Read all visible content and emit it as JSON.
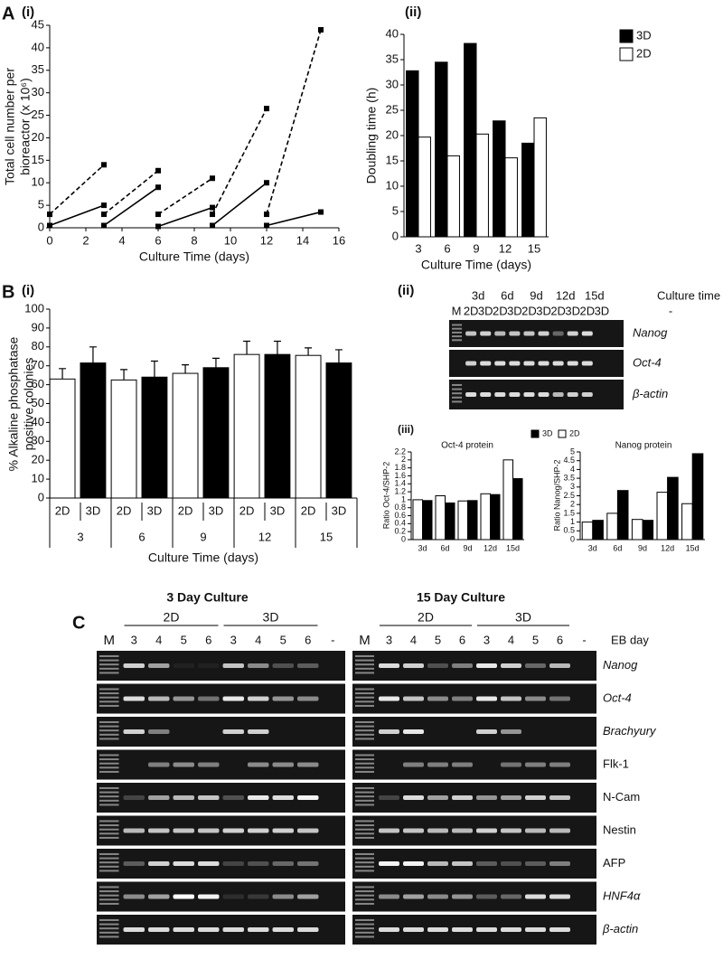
{
  "chart_data": [
    {
      "type": "line",
      "panel": "A",
      "title": "(i)",
      "xlabel": "Culture Time (days)",
      "ylabel": [
        "Total cell number per",
        "bioreactor (x 10⁶)"
      ],
      "xlim": [
        0,
        16
      ],
      "xticks": [
        0,
        2,
        4,
        6,
        8,
        10,
        12,
        14,
        16
      ],
      "ylim": [
        0,
        45
      ],
      "yticks": [
        0,
        5,
        10,
        15,
        20,
        25,
        30,
        35,
        40,
        45
      ],
      "series": [
        {
          "color": "#000000",
          "dashed": true,
          "x": [
            0,
            3
          ],
          "values": [
            3,
            14
          ]
        },
        {
          "color": "#000000",
          "dashed": true,
          "x": [
            3,
            6
          ],
          "values": [
            3,
            12.7
          ]
        },
        {
          "color": "#000000",
          "dashed": true,
          "x": [
            6,
            9
          ],
          "values": [
            3,
            11
          ]
        },
        {
          "color": "#000000",
          "dashed": true,
          "x": [
            9,
            12
          ],
          "values": [
            3,
            26.5
          ]
        },
        {
          "color": "#000000",
          "dashed": true,
          "x": [
            12,
            15
          ],
          "values": [
            3,
            44
          ]
        },
        {
          "color": "#000000",
          "dashed": false,
          "x": [
            0,
            3
          ],
          "values": [
            0.5,
            5
          ]
        },
        {
          "color": "#000000",
          "dashed": false,
          "x": [
            3,
            6
          ],
          "values": [
            0.5,
            9
          ]
        },
        {
          "color": "#000000",
          "dashed": false,
          "x": [
            6,
            9
          ],
          "values": [
            0.3,
            4.5
          ]
        },
        {
          "color": "#000000",
          "dashed": false,
          "x": [
            9,
            12
          ],
          "values": [
            0.5,
            10
          ]
        },
        {
          "color": "#000000",
          "dashed": false,
          "x": [
            12,
            15
          ],
          "values": [
            0.5,
            3.5
          ]
        }
      ]
    },
    {
      "type": "bar",
      "title": "(ii)",
      "xlabel": "Culture Time (days)",
      "ylabel": [
        "Doubling time (h)"
      ],
      "categories": [
        "3",
        "6",
        "9",
        "12",
        "15"
      ],
      "ylim": [
        0,
        40
      ],
      "yticks": [
        0,
        5,
        10,
        15,
        20,
        25,
        30,
        35,
        40
      ],
      "legend": "top-right",
      "series": [
        {
          "name": "3D",
          "color": "#000000",
          "values": [
            32.8,
            34.5,
            38.2,
            22.9,
            18.5
          ]
        },
        {
          "name": "2D",
          "color": "#ffffff",
          "values": [
            19.7,
            16,
            20.3,
            15.6,
            23.5
          ]
        }
      ]
    },
    {
      "type": "bar",
      "panel": "B",
      "title": "(i)",
      "xlabel": "Culture Time (days)",
      "ylabel": [
        "% Alkaline phosphatase",
        "positive colonies"
      ],
      "categories": [
        "3",
        "6",
        "9",
        "12",
        "15"
      ],
      "ylim": [
        0,
        100
      ],
      "yticks": [
        0,
        10,
        20,
        30,
        40,
        50,
        60,
        70,
        80,
        90,
        100
      ],
      "series_labels": true,
      "series": [
        {
          "name": "2D",
          "color": "#ffffff",
          "values": [
            63,
            62.5,
            66,
            76,
            75.5
          ],
          "errors": [
            5.5,
            5.5,
            4.5,
            7,
            4
          ]
        },
        {
          "name": "3D",
          "color": "#000000",
          "values": [
            71.5,
            64,
            69,
            76,
            71.5
          ],
          "errors": [
            8.5,
            8.5,
            5,
            7,
            7
          ]
        }
      ]
    },
    {
      "type": "bar",
      "panel": "(iii)",
      "title": "Oct-4 protein",
      "ylabel": [
        "Ratio Oct-4/SHP-2"
      ],
      "categories": [
        "3d",
        "6d",
        "9d",
        "12d",
        "15d"
      ],
      "ylim": [
        0,
        2.2
      ],
      "yticks": [
        0,
        0.2,
        0.4,
        0.6,
        0.8,
        1,
        1.2,
        1.4,
        1.6,
        1.8,
        2,
        2.2
      ],
      "legend": "top",
      "series": [
        {
          "name": "2D",
          "color": "#ffffff",
          "values": [
            1.0,
            1.1,
            0.97,
            1.15,
            2.0
          ]
        },
        {
          "name": "3D",
          "color": "#000000",
          "values": [
            0.98,
            0.92,
            0.98,
            1.13,
            1.53
          ]
        }
      ]
    },
    {
      "type": "bar",
      "title": "Nanog protein",
      "ylabel": [
        "Ratio Nanog/SHP-2"
      ],
      "categories": [
        "3d",
        "6d",
        "9d",
        "12d",
        "15d"
      ],
      "ylim": [
        0,
        5
      ],
      "yticks": [
        0,
        0.5,
        1,
        1.5,
        2,
        2.5,
        3,
        3.5,
        4,
        4.5,
        5
      ],
      "series": [
        {
          "color": "#ffffff",
          "values": [
            1.0,
            1.5,
            1.15,
            2.7,
            2.05
          ]
        },
        {
          "color": "#000000",
          "values": [
            1.1,
            2.8,
            1.1,
            3.55,
            4.9
          ]
        }
      ]
    }
  ],
  "gel_b": {
    "label": "(ii)",
    "marker": "M",
    "days": [
      "3d",
      "6d",
      "9d",
      "12d",
      "15d"
    ],
    "lanes": [
      "2D",
      "3D",
      "2D",
      "3D",
      "2D",
      "3D",
      "2D",
      "3D",
      "2D",
      "3D"
    ],
    "time_label": "Culture time",
    "negative": "-",
    "genes": [
      {
        "name": "Nanog",
        "italic": true
      },
      {
        "name": "Oct-4",
        "italic": true
      },
      {
        "name": "β-actin",
        "italic": true
      }
    ]
  },
  "gel_c": {
    "panel": "C",
    "eb_label": "EB day",
    "panels": [
      {
        "title": "3 Day Culture",
        "groups": [
          "2D",
          "3D"
        ],
        "marker": "M",
        "lanes": [
          "3",
          "4",
          "5",
          "6",
          "3",
          "4",
          "5",
          "6"
        ],
        "negative": "-"
      },
      {
        "title": "15 Day Culture",
        "groups": [
          "2D",
          "3D"
        ],
        "marker": "M",
        "lanes": [
          "3",
          "4",
          "5",
          "6",
          "3",
          "4",
          "5",
          "6"
        ],
        "negative": "-"
      }
    ],
    "genes": [
      {
        "name": "Nanog",
        "italic": true
      },
      {
        "name": "Oct-4",
        "italic": true
      },
      {
        "name": "Brachyury",
        "italic": true
      },
      {
        "name": "Flk-1",
        "italic": false
      },
      {
        "name": "N-Cam",
        "italic": false
      },
      {
        "name": "Nestin",
        "italic": false
      },
      {
        "name": "AFP",
        "italic": false
      },
      {
        "name": "HNF4α",
        "italic": true
      },
      {
        "name": "β-actin",
        "italic": true
      }
    ]
  }
}
